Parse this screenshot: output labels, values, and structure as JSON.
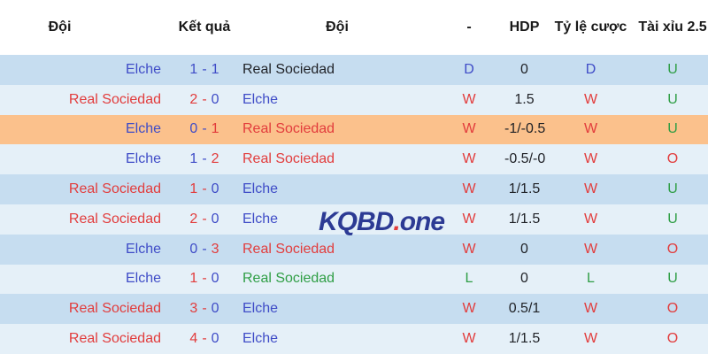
{
  "header": {
    "col_team1": "Đội",
    "col_result": "Kết quả",
    "col_team2": "Đội",
    "col_dash": "-",
    "col_hdp": "HDP",
    "col_odds": "Tỷ lệ cược",
    "col_ou": "Tài xỉu 2.5"
  },
  "score_separator": "-",
  "watermark": {
    "name": "KQBD",
    "dot": ".",
    "tld": "one"
  },
  "colors": {
    "blue": "#3f4cc7",
    "red": "#e23c3c",
    "green": "#2f9e45",
    "dark": "#1f2126",
    "header_text": "#1a1a1a",
    "row_medium": "#c6ddf0",
    "row_light": "#e5f0f8",
    "row_highlight": "#fbc18c",
    "watermark_navy": "#2c3a94",
    "watermark_dot": "#e23c3c"
  },
  "rows": [
    {
      "team1": "Elche",
      "team1_color": "blue",
      "score1": "1",
      "score1_color": "blue",
      "score2": "1",
      "score2_color": "blue",
      "team2": "Real Sociedad",
      "team2_color": "dark",
      "result": "D",
      "result_color": "blue",
      "hdp": "0",
      "odds": "D",
      "odds_color": "blue",
      "ou": "U",
      "ou_color": "green",
      "row_style": "medium"
    },
    {
      "team1": "Real Sociedad",
      "team1_color": "red",
      "score1": "2",
      "score1_color": "red",
      "score2": "0",
      "score2_color": "blue",
      "team2": "Elche",
      "team2_color": "blue",
      "result": "W",
      "result_color": "red",
      "hdp": "1.5",
      "odds": "W",
      "odds_color": "red",
      "ou": "U",
      "ou_color": "green",
      "row_style": "light"
    },
    {
      "team1": "Elche",
      "team1_color": "blue",
      "score1": "0",
      "score1_color": "blue",
      "score2": "1",
      "score2_color": "red",
      "team2": "Real Sociedad",
      "team2_color": "red",
      "result": "W",
      "result_color": "red",
      "hdp": "-1/-0.5",
      "odds": "W",
      "odds_color": "red",
      "ou": "U",
      "ou_color": "green",
      "row_style": "highlight"
    },
    {
      "team1": "Elche",
      "team1_color": "blue",
      "score1": "1",
      "score1_color": "blue",
      "score2": "2",
      "score2_color": "red",
      "team2": "Real Sociedad",
      "team2_color": "red",
      "result": "W",
      "result_color": "red",
      "hdp": "-0.5/-0",
      "odds": "W",
      "odds_color": "red",
      "ou": "O",
      "ou_color": "red",
      "row_style": "light"
    },
    {
      "team1": "Real Sociedad",
      "team1_color": "red",
      "score1": "1",
      "score1_color": "red",
      "score2": "0",
      "score2_color": "blue",
      "team2": "Elche",
      "team2_color": "blue",
      "result": "W",
      "result_color": "red",
      "hdp": "1/1.5",
      "odds": "W",
      "odds_color": "red",
      "ou": "U",
      "ou_color": "green",
      "row_style": "medium"
    },
    {
      "team1": "Real Sociedad",
      "team1_color": "red",
      "score1": "2",
      "score1_color": "red",
      "score2": "0",
      "score2_color": "blue",
      "team2": "Elche",
      "team2_color": "blue",
      "result": "W",
      "result_color": "red",
      "hdp": "1/1.5",
      "odds": "W",
      "odds_color": "red",
      "ou": "U",
      "ou_color": "green",
      "row_style": "light"
    },
    {
      "team1": "Elche",
      "team1_color": "blue",
      "score1": "0",
      "score1_color": "blue",
      "score2": "3",
      "score2_color": "red",
      "team2": "Real Sociedad",
      "team2_color": "red",
      "result": "W",
      "result_color": "red",
      "hdp": "0",
      "odds": "W",
      "odds_color": "red",
      "ou": "O",
      "ou_color": "red",
      "row_style": "medium"
    },
    {
      "team1": "Elche",
      "team1_color": "blue",
      "score1": "1",
      "score1_color": "red",
      "score2": "0",
      "score2_color": "blue",
      "team2": "Real Sociedad",
      "team2_color": "green",
      "result": "L",
      "result_color": "green",
      "hdp": "0",
      "odds": "L",
      "odds_color": "green",
      "ou": "U",
      "ou_color": "green",
      "row_style": "light"
    },
    {
      "team1": "Real Sociedad",
      "team1_color": "red",
      "score1": "3",
      "score1_color": "red",
      "score2": "0",
      "score2_color": "blue",
      "team2": "Elche",
      "team2_color": "blue",
      "result": "W",
      "result_color": "red",
      "hdp": "0.5/1",
      "odds": "W",
      "odds_color": "red",
      "ou": "O",
      "ou_color": "red",
      "row_style": "medium"
    },
    {
      "team1": "Real Sociedad",
      "team1_color": "red",
      "score1": "4",
      "score1_color": "red",
      "score2": "0",
      "score2_color": "blue",
      "team2": "Elche",
      "team2_color": "blue",
      "result": "W",
      "result_color": "red",
      "hdp": "1/1.5",
      "odds": "W",
      "odds_color": "red",
      "ou": "O",
      "ou_color": "red",
      "row_style": "light"
    }
  ]
}
